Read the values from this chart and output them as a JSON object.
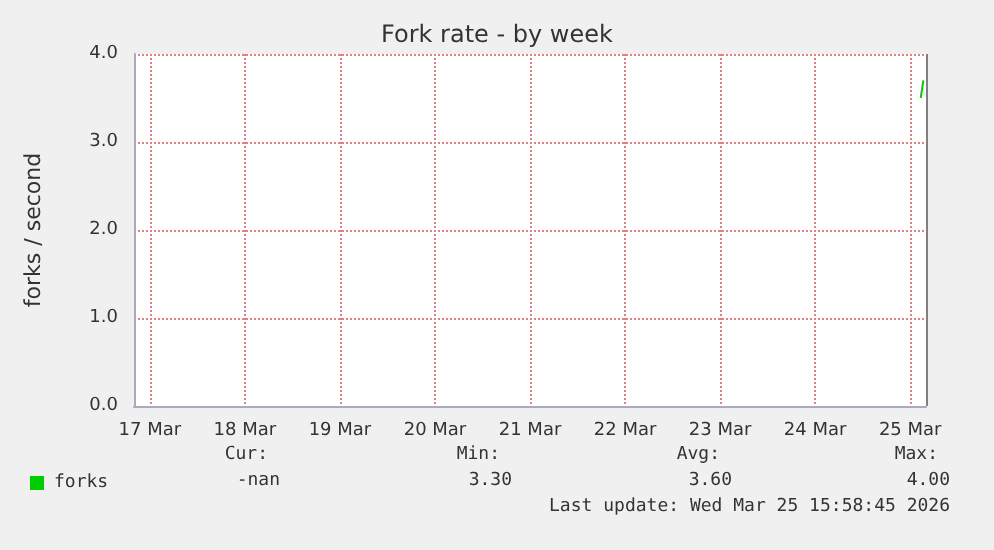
{
  "chart_data": {
    "type": "line",
    "title": "Fork rate - by week",
    "ylabel": "forks / second",
    "x": [
      "2026-03-25T14:40",
      "2026-03-25T15:00",
      "2026-03-25T15:20"
    ],
    "series": [
      {
        "name": "forks",
        "color": "#00cc00",
        "values": [
          3.5,
          3.6,
          3.7
        ]
      }
    ],
    "xlim": [
      "2026-03-17T08:00",
      "2026-03-25T16:00"
    ],
    "xticks": [
      {
        "value": "2026-03-17T12:00",
        "label": "17 Mar"
      },
      {
        "value": "2026-03-18T12:00",
        "label": "18 Mar"
      },
      {
        "value": "2026-03-19T12:00",
        "label": "19 Mar"
      },
      {
        "value": "2026-03-20T12:00",
        "label": "20 Mar"
      },
      {
        "value": "2026-03-21T12:00",
        "label": "21 Mar"
      },
      {
        "value": "2026-03-22T12:00",
        "label": "22 Mar"
      },
      {
        "value": "2026-03-23T12:00",
        "label": "23 Mar"
      },
      {
        "value": "2026-03-24T12:00",
        "label": "24 Mar"
      },
      {
        "value": "2026-03-25T12:00",
        "label": "25 Mar"
      }
    ],
    "ylim": [
      0,
      4
    ],
    "yticks": [
      {
        "value": 0,
        "label": "0.0"
      },
      {
        "value": 1,
        "label": "1.0"
      },
      {
        "value": 2,
        "label": "2.0"
      },
      {
        "value": 3,
        "label": "3.0"
      },
      {
        "value": 4,
        "label": "4.0"
      }
    ],
    "grid": true,
    "legend": "bottom left",
    "marker": "none",
    "line_style": "solid",
    "ref_lines": [
      {
        "axis": "x",
        "value": "2026-03-25T15:58",
        "color": "#808080"
      }
    ],
    "annotations": [
      "Cur:",
      "Min:",
      "Avg:",
      "Max:",
      "-nan",
      "3.30",
      "3.60",
      "4.00",
      "Last update: Wed Mar 25 15:58:45 2026"
    ]
  }
}
